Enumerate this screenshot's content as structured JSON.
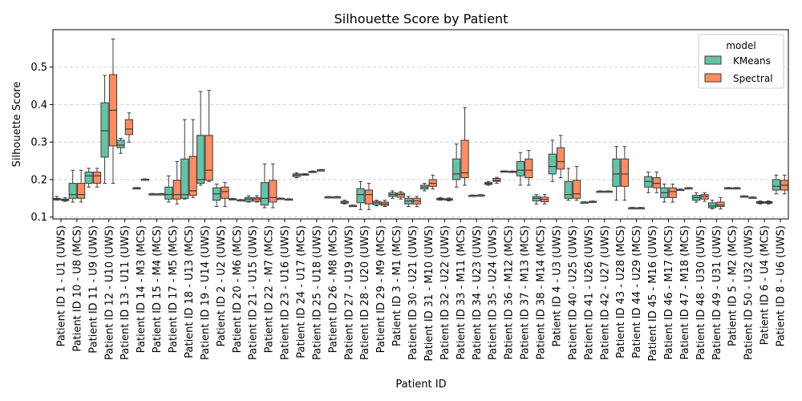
{
  "chart_data": {
    "type": "box",
    "title": "Silhouette Score by Patient",
    "xlabel": "Patient ID",
    "ylabel": "Silhouette Score",
    "ylim": [
      0.095,
      0.6
    ],
    "yticks": [
      0.1,
      0.2,
      0.3,
      0.4,
      0.5
    ],
    "grid": "y-dashed",
    "legend": {
      "title": "model",
      "placement": "top-right"
    },
    "categories": [
      "Patient ID 1 - U1 (UWS)",
      "Patient ID 10 - U8 (MCS)",
      "Patient ID 11 - U9 (UWS)",
      "Patient ID 12 - U10 (UWS)",
      "Patient ID 13 - U11 (UWS)",
      "Patient ID 14 - M3 (MCS)",
      "Patient ID 15 - M4 (MCS)",
      "Patient ID 17 - M5 (MCS)",
      "Patient ID 18 - U13 (MCS)",
      "Patient ID 19 - U14 (UWS)",
      "Patient ID 2 - U2 (UWS)",
      "Patient ID 20 - M6 (MCS)",
      "Patient ID 21 - U15 (UWS)",
      "Patient ID 22 - M7 (MCS)",
      "Patient ID 23 - U16 (UWS)",
      "Patient ID 24 - U17 (MCS)",
      "Patient ID 25 - U18 (UWS)",
      "Patient ID 26 - M8 (MCS)",
      "Patient ID 27 - U19 (UWS)",
      "Patient ID 28 - U20 (UWS)",
      "Patient ID 29 - M9 (MCS)",
      "Patient ID 3 - M1 (MCS)",
      "Patient ID 30 - U21 (UWS)",
      "Patient ID 31 - M10 (UWS)",
      "Patient ID 32 - U22 (UWS)",
      "Patient ID 33 - M11 (MCS)",
      "Patient ID 34 - U23 (UWS)",
      "Patient ID 35 - U24 (UWS)",
      "Patient ID 36 - M12 (MCS)",
      "Patient ID 37 - M13 (MCS)",
      "Patient ID 38 - M14 (MCS)",
      "Patient ID 4 - U3 (UWS)",
      "Patient ID 40 - U25 (UWS)",
      "Patient ID 41 - U26 (UWS)",
      "Patient ID 42 - U27 (UWS)",
      "Patient ID 43 - U28 (MCS)",
      "Patient ID 44 - U29 (MCS)",
      "Patient ID 45 - M16 (UWS)",
      "Patient ID 46 - M17 (MCS)",
      "Patient ID 47 - M18 (MCS)",
      "Patient ID 48 - U30 (UWS)",
      "Patient ID 49 - U31 (UWS)",
      "Patient ID 5 - M2 (MCS)",
      "Patient ID 50 - U32 (UWS)",
      "Patient ID 6 - U4 (MCS)",
      "Patient ID 8 - U6 (UWS)"
    ],
    "series": [
      {
        "name": "KMeans",
        "color": "#66c2a5",
        "boxes": [
          [
            0.145,
            0.146,
            0.148,
            0.15,
            0.155
          ],
          [
            0.14,
            0.15,
            0.16,
            0.19,
            0.225
          ],
          [
            0.18,
            0.19,
            0.21,
            0.22,
            0.23
          ],
          [
            0.19,
            0.26,
            0.33,
            0.405,
            0.478
          ],
          [
            0.27,
            0.285,
            0.292,
            0.305,
            0.31
          ],
          [
            0.177,
            0.177,
            0.178,
            0.178,
            0.179
          ],
          [
            0.162,
            0.162,
            0.162,
            0.162,
            0.163
          ],
          [
            0.14,
            0.148,
            0.16,
            0.18,
            0.21
          ],
          [
            0.148,
            0.15,
            0.16,
            0.255,
            0.36
          ],
          [
            0.185,
            0.19,
            0.2,
            0.318,
            0.435
          ],
          [
            0.128,
            0.145,
            0.162,
            0.178,
            0.188
          ],
          [
            0.147,
            0.147,
            0.148,
            0.149,
            0.15
          ],
          [
            0.14,
            0.142,
            0.148,
            0.152,
            0.157
          ],
          [
            0.125,
            0.132,
            0.15,
            0.192,
            0.242
          ],
          [
            0.149,
            0.149,
            0.15,
            0.15,
            0.151
          ],
          [
            0.205,
            0.208,
            0.212,
            0.215,
            0.218
          ],
          [
            0.22,
            0.22,
            0.221,
            0.222,
            0.223
          ],
          [
            0.153,
            0.153,
            0.154,
            0.154,
            0.155
          ],
          [
            0.135,
            0.137,
            0.14,
            0.142,
            0.145
          ],
          [
            0.12,
            0.138,
            0.16,
            0.176,
            0.195
          ],
          [
            0.13,
            0.133,
            0.138,
            0.142,
            0.145
          ],
          [
            0.15,
            0.155,
            0.16,
            0.165,
            0.17
          ],
          [
            0.128,
            0.135,
            0.143,
            0.15,
            0.155
          ],
          [
            0.17,
            0.175,
            0.18,
            0.185,
            0.19
          ],
          [
            0.145,
            0.146,
            0.148,
            0.15,
            0.152
          ],
          [
            0.18,
            0.2,
            0.215,
            0.255,
            0.295
          ],
          [
            0.157,
            0.157,
            0.158,
            0.158,
            0.159
          ],
          [
            0.185,
            0.187,
            0.19,
            0.192,
            0.195
          ],
          [
            0.222,
            0.222,
            0.222,
            0.223,
            0.223
          ],
          [
            0.185,
            0.21,
            0.225,
            0.248,
            0.272
          ],
          [
            0.135,
            0.143,
            0.15,
            0.155,
            0.16
          ],
          [
            0.195,
            0.215,
            0.235,
            0.268,
            0.305
          ],
          [
            0.145,
            0.15,
            0.16,
            0.195,
            0.23
          ],
          [
            0.139,
            0.139,
            0.14,
            0.14,
            0.141
          ],
          [
            0.168,
            0.168,
            0.169,
            0.169,
            0.17
          ],
          [
            0.145,
            0.182,
            0.215,
            0.255,
            0.288
          ],
          [
            0.124,
            0.124,
            0.125,
            0.125,
            0.126
          ],
          [
            0.165,
            0.18,
            0.195,
            0.208,
            0.22
          ],
          [
            0.14,
            0.152,
            0.165,
            0.178,
            0.188
          ],
          [
            0.173,
            0.173,
            0.174,
            0.174,
            0.175
          ],
          [
            0.14,
            0.145,
            0.152,
            0.158,
            0.165
          ],
          [
            0.122,
            0.125,
            0.13,
            0.138,
            0.145
          ],
          [
            0.177,
            0.177,
            0.178,
            0.178,
            0.179
          ],
          [
            0.155,
            0.155,
            0.156,
            0.156,
            0.157
          ],
          [
            0.135,
            0.137,
            0.139,
            0.141,
            0.143
          ],
          [
            0.162,
            0.172,
            0.182,
            0.2,
            0.212
          ]
        ]
      },
      {
        "name": "Spectral",
        "color": "#fc8d62",
        "boxes": [
          [
            0.142,
            0.144,
            0.146,
            0.148,
            0.152
          ],
          [
            0.14,
            0.15,
            0.16,
            0.19,
            0.225
          ],
          [
            0.18,
            0.19,
            0.21,
            0.22,
            0.23
          ],
          [
            0.19,
            0.29,
            0.385,
            0.48,
            0.575
          ],
          [
            0.3,
            0.32,
            0.335,
            0.36,
            0.378
          ],
          [
            0.2,
            0.2,
            0.201,
            0.201,
            0.202
          ],
          [
            0.161,
            0.161,
            0.162,
            0.162,
            0.163
          ],
          [
            0.135,
            0.148,
            0.16,
            0.198,
            0.248
          ],
          [
            0.152,
            0.158,
            0.17,
            0.262,
            0.36
          ],
          [
            0.195,
            0.198,
            0.225,
            0.318,
            0.438
          ],
          [
            0.128,
            0.15,
            0.168,
            0.18,
            0.192
          ],
          [
            0.145,
            0.145,
            0.146,
            0.146,
            0.147
          ],
          [
            0.14,
            0.142,
            0.148,
            0.152,
            0.157
          ],
          [
            0.125,
            0.14,
            0.152,
            0.198,
            0.242
          ],
          [
            0.147,
            0.147,
            0.148,
            0.148,
            0.149
          ],
          [
            0.212,
            0.213,
            0.214,
            0.215,
            0.216
          ],
          [
            0.225,
            0.225,
            0.226,
            0.226,
            0.227
          ],
          [
            0.153,
            0.153,
            0.154,
            0.154,
            0.155
          ],
          [
            0.13,
            0.13,
            0.131,
            0.131,
            0.132
          ],
          [
            0.12,
            0.135,
            0.16,
            0.172,
            0.19
          ],
          [
            0.128,
            0.131,
            0.135,
            0.14,
            0.145
          ],
          [
            0.148,
            0.153,
            0.16,
            0.164,
            0.168
          ],
          [
            0.128,
            0.135,
            0.143,
            0.15,
            0.155
          ],
          [
            0.175,
            0.182,
            0.19,
            0.2,
            0.212
          ],
          [
            0.143,
            0.145,
            0.147,
            0.149,
            0.151
          ],
          [
            0.185,
            0.205,
            0.218,
            0.305,
            0.392
          ],
          [
            0.158,
            0.158,
            0.159,
            0.159,
            0.16
          ],
          [
            0.19,
            0.195,
            0.198,
            0.203,
            0.206
          ],
          [
            0.221,
            0.221,
            0.222,
            0.222,
            0.223
          ],
          [
            0.185,
            0.205,
            0.225,
            0.255,
            0.278
          ],
          [
            0.135,
            0.141,
            0.147,
            0.153,
            0.16
          ],
          [
            0.205,
            0.228,
            0.248,
            0.285,
            0.318
          ],
          [
            0.145,
            0.15,
            0.162,
            0.198,
            0.235
          ],
          [
            0.141,
            0.141,
            0.142,
            0.142,
            0.143
          ],
          [
            0.168,
            0.168,
            0.169,
            0.169,
            0.17
          ],
          [
            0.145,
            0.182,
            0.215,
            0.255,
            0.288
          ],
          [
            0.124,
            0.124,
            0.125,
            0.125,
            0.126
          ],
          [
            0.165,
            0.178,
            0.19,
            0.205,
            0.22
          ],
          [
            0.14,
            0.152,
            0.168,
            0.178,
            0.188
          ],
          [
            0.177,
            0.177,
            0.178,
            0.178,
            0.179
          ],
          [
            0.142,
            0.148,
            0.155,
            0.16,
            0.165
          ],
          [
            0.122,
            0.128,
            0.132,
            0.14,
            0.152
          ],
          [
            0.177,
            0.177,
            0.178,
            0.178,
            0.179
          ],
          [
            0.152,
            0.152,
            0.153,
            0.153,
            0.154
          ],
          [
            0.135,
            0.137,
            0.139,
            0.141,
            0.143
          ],
          [
            0.162,
            0.172,
            0.185,
            0.198,
            0.212
          ]
        ]
      }
    ]
  }
}
